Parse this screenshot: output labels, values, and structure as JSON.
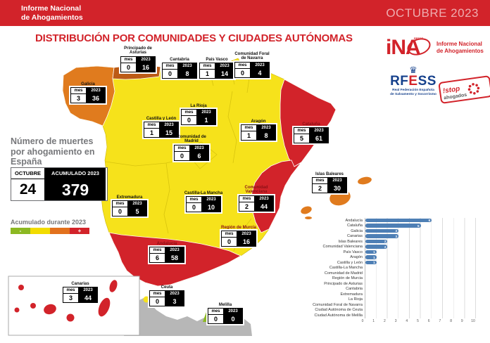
{
  "header": {
    "brand_line1": "Informe Nacional",
    "brand_line2": "de Ahogamientos",
    "period": "OCTUBRE 2023"
  },
  "title": "DISTRIBUCIÓN POR COMUNIDADES Y CIUDADES AUTÓNOMAS",
  "logos": {
    "ina": {
      "mark": "iNA",
      "mark_sub": "RFESS",
      "caption_line1": "Informe Nacional",
      "caption_line2": "de Ahogamientos"
    },
    "rfess": {
      "part1": "RF",
      "part2": "E",
      "part3": "SS",
      "caption_line1": "Real Federación Española",
      "caption_line2": "de Salvamento y Socorrismo"
    },
    "stop": {
      "word1": "!stop",
      "word2": "ahogados"
    }
  },
  "summary": {
    "heading": "Número de muertes por ahogamiento en España",
    "col_month": "OCTUBRE",
    "col_accumulated": "ACUMULADO 2023",
    "month_value": "24",
    "accumulated_value": "379",
    "legend_title": "Acumulado durante 2023",
    "legend": [
      {
        "symbol": "-",
        "color": "#8cb822"
      },
      {
        "symbol": "",
        "color": "#f2dc00"
      },
      {
        "symbol": "",
        "color": "#e2711d"
      },
      {
        "symbol": "+",
        "color": "#d2232a"
      }
    ]
  },
  "map": {
    "col_mes": "mes",
    "col_year": "2023",
    "regions": [
      {
        "name": "Principado de Asturias",
        "mes": "0",
        "y2023": "16"
      },
      {
        "name": "Cantabria",
        "mes": "0",
        "y2023": "8"
      },
      {
        "name": "País Vasco",
        "mes": "1",
        "y2023": "14"
      },
      {
        "name": "Comunidad Foral de Navarra",
        "mes": "0",
        "y2023": "4"
      },
      {
        "name": "Galicia",
        "mes": "3",
        "y2023": "36"
      },
      {
        "name": "La Rioja",
        "mes": "0",
        "y2023": "1"
      },
      {
        "name": "Castilla y León",
        "mes": "1",
        "y2023": "15"
      },
      {
        "name": "Aragón",
        "mes": "1",
        "y2023": "8"
      },
      {
        "name": "Cataluña",
        "mes": "5",
        "y2023": "61"
      },
      {
        "name": "Comunidad de Madrid",
        "mes": "0",
        "y2023": "6"
      },
      {
        "name": "Islas Baleares",
        "mes": "2",
        "y2023": "30"
      },
      {
        "name": "Extremadura",
        "mes": "0",
        "y2023": "5"
      },
      {
        "name": "Castilla-La Mancha",
        "mes": "0",
        "y2023": "10"
      },
      {
        "name": "Comunidad Valenciana",
        "mes": "2",
        "y2023": "44"
      },
      {
        "name": "Región de Murcia",
        "mes": "0",
        "y2023": "16"
      },
      {
        "name": "Andalucía",
        "mes": "6",
        "y2023": "58"
      },
      {
        "name": "Canarias",
        "mes": "3",
        "y2023": "44"
      },
      {
        "name": "Ceuta",
        "mes": "0",
        "y2023": "3"
      },
      {
        "name": "Melilla",
        "mes": "0",
        "y2023": "0"
      }
    ]
  },
  "chart_data": {
    "type": "bar",
    "orientation": "horizontal",
    "title": "",
    "xlabel": "",
    "ylabel": "",
    "xlim": [
      0,
      10
    ],
    "grid": true,
    "bar_color": "#4e7fb5",
    "categories": [
      "Andalucía",
      "Cataluña",
      "Galicia",
      "Canarias",
      "Islas Baleares",
      "Comunidad Valenciana",
      "País Vasco",
      "Aragón",
      "Castilla y León",
      "Castilla-La Mancha",
      "Comunidad de Madrid",
      "Región de Murcia",
      "Principado de Asturias",
      "Cantabria",
      "Extremadura",
      "La Rioja",
      "Comunidad Foral de Navarra",
      "Ciudad Autónoma de Ceuta",
      "Ciudad Autónoma de Melilla"
    ],
    "values": [
      6,
      5,
      3,
      3,
      2,
      2,
      1,
      1,
      1,
      0,
      0,
      0,
      0,
      0,
      0,
      0,
      0,
      0,
      0
    ],
    "xticks": [
      0,
      1,
      2,
      3,
      4,
      5,
      6,
      7,
      8,
      9,
      10
    ]
  },
  "colors": {
    "brand_red": "#d2232a",
    "map_yellow": "#f6e21b",
    "map_orange": "#e07b1e",
    "map_dark_orange": "#bc5b16",
    "map_red": "#d2232a",
    "africa_gray": "#b7b7b7",
    "melilla_green": "#8cb822"
  }
}
